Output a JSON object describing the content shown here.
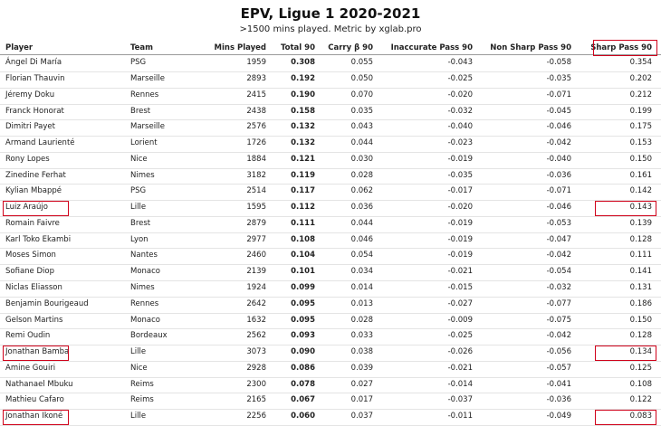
{
  "header": {
    "title": "EPV, Ligue 1 2020-2021",
    "subtitle": ">1500 mins played. Metric by xglab.pro"
  },
  "table": {
    "columns": [
      "Player",
      "Team",
      "Mins Played",
      "Total 90",
      "Carry β 90",
      "Inaccurate Pass 90",
      "Non Sharp Pass 90",
      "Sharp Pass 90"
    ],
    "rows": [
      [
        "Ángel Di María",
        "PSG",
        "1959",
        "0.308",
        "0.055",
        "-0.043",
        "-0.058",
        "0.354"
      ],
      [
        "Florian Thauvin",
        "Marseille",
        "2893",
        "0.192",
        "0.050",
        "-0.025",
        "-0.035",
        "0.202"
      ],
      [
        "Jéremy Doku",
        "Rennes",
        "2415",
        "0.190",
        "0.070",
        "-0.020",
        "-0.071",
        "0.212"
      ],
      [
        "Franck Honorat",
        "Brest",
        "2438",
        "0.158",
        "0.035",
        "-0.032",
        "-0.045",
        "0.199"
      ],
      [
        "Dimitri Payet",
        "Marseille",
        "2576",
        "0.132",
        "0.043",
        "-0.040",
        "-0.046",
        "0.175"
      ],
      [
        "Armand Laurienté",
        "Lorient",
        "1726",
        "0.132",
        "0.044",
        "-0.023",
        "-0.042",
        "0.153"
      ],
      [
        "Rony Lopes",
        "Nice",
        "1884",
        "0.121",
        "0.030",
        "-0.019",
        "-0.040",
        "0.150"
      ],
      [
        "Zinedine Ferhat",
        "Nimes",
        "3182",
        "0.119",
        "0.028",
        "-0.035",
        "-0.036",
        "0.161"
      ],
      [
        "Kylian Mbappé",
        "PSG",
        "2514",
        "0.117",
        "0.062",
        "-0.017",
        "-0.071",
        "0.142"
      ],
      [
        "Luiz Araújo",
        "Lille",
        "1595",
        "0.112",
        "0.036",
        "-0.020",
        "-0.046",
        "0.143"
      ],
      [
        "Romain Faivre",
        "Brest",
        "2879",
        "0.111",
        "0.044",
        "-0.019",
        "-0.053",
        "0.139"
      ],
      [
        "Karl Toko Ekambi",
        "Lyon",
        "2977",
        "0.108",
        "0.046",
        "-0.019",
        "-0.047",
        "0.128"
      ],
      [
        "Moses Simon",
        "Nantes",
        "2460",
        "0.104",
        "0.054",
        "-0.019",
        "-0.042",
        "0.111"
      ],
      [
        "Sofiane Diop",
        "Monaco",
        "2139",
        "0.101",
        "0.034",
        "-0.021",
        "-0.054",
        "0.141"
      ],
      [
        "Niclas Eliasson",
        "Nimes",
        "1924",
        "0.099",
        "0.014",
        "-0.015",
        "-0.032",
        "0.131"
      ],
      [
        "Benjamin Bourigeaud",
        "Rennes",
        "2642",
        "0.095",
        "0.013",
        "-0.027",
        "-0.077",
        "0.186"
      ],
      [
        "Gelson Martins",
        "Monaco",
        "1632",
        "0.095",
        "0.028",
        "-0.009",
        "-0.075",
        "0.150"
      ],
      [
        "Remi Oudin",
        "Bordeaux",
        "2562",
        "0.093",
        "0.033",
        "-0.025",
        "-0.042",
        "0.128"
      ],
      [
        "Jonathan Bamba",
        "Lille",
        "3073",
        "0.090",
        "0.038",
        "-0.026",
        "-0.056",
        "0.134"
      ],
      [
        "Amine Gouiri",
        "Nice",
        "2928",
        "0.086",
        "0.039",
        "-0.021",
        "-0.057",
        "0.125"
      ],
      [
        "Nathanael Mbuku",
        "Reims",
        "2300",
        "0.078",
        "0.027",
        "-0.014",
        "-0.041",
        "0.108"
      ],
      [
        "Mathieu Cafaro",
        "Reims",
        "2165",
        "0.067",
        "0.017",
        "-0.037",
        "-0.036",
        "0.122"
      ],
      [
        "Jonathan Ikoné",
        "Lille",
        "2256",
        "0.060",
        "0.037",
        "-0.011",
        "-0.049",
        "0.083"
      ]
    ]
  }
}
